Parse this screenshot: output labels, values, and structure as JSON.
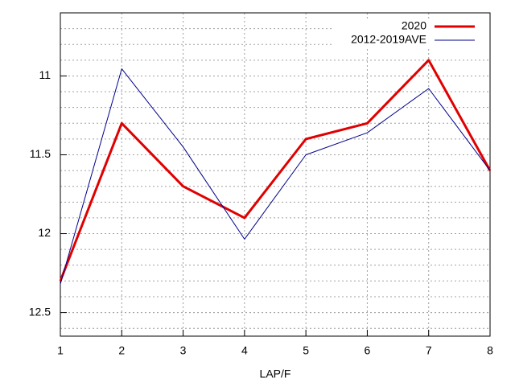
{
  "chart_data": {
    "type": "line",
    "x_label": "LAP/F",
    "x": [
      1,
      2,
      3,
      4,
      5,
      6,
      7,
      8
    ],
    "series": [
      {
        "name": "2020",
        "color": "#e00000",
        "width": 3,
        "values": [
          12.3,
          11.3,
          11.7,
          11.9,
          11.4,
          11.3,
          10.9,
          11.6
        ]
      },
      {
        "name": "2012-2019AVE",
        "color": "#00008b",
        "width": 1,
        "values": [
          12.32,
          10.955,
          11.45,
          12.035,
          11.5,
          11.36,
          11.08,
          11.6
        ]
      }
    ],
    "xlim": [
      1,
      8
    ],
    "xticks": [
      1,
      2,
      3,
      4,
      5,
      6,
      7,
      8
    ],
    "ylim": [
      10.6,
      12.65
    ],
    "yticks": [
      11,
      11.5,
      12,
      12.5
    ],
    "y_reversed": true,
    "grid": true,
    "y_minor_subdivisions": 5,
    "legend": "top-right"
  }
}
